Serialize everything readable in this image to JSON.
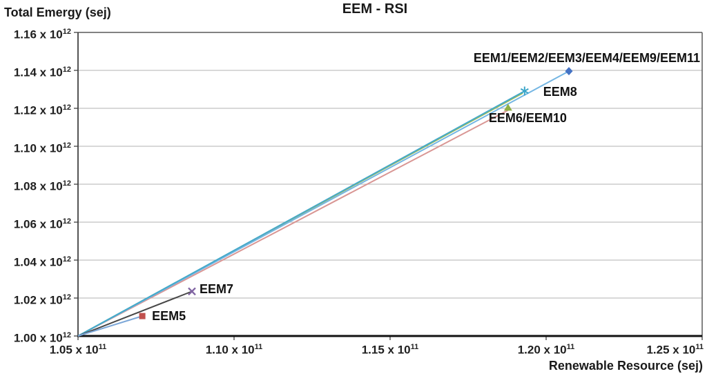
{
  "chart_data": {
    "type": "line",
    "title": "EEM - RSI",
    "legend": "none",
    "grid": "horizontal-only",
    "x_axis": {
      "label": "Renewable Resource (sej)",
      "unit_exponent": "11",
      "min": 1.05,
      "max": 1.25,
      "ticks": [
        {
          "value": 1.05,
          "base": "1.05 x 10",
          "exp": "11"
        },
        {
          "value": 1.1,
          "base": "1.10 x 10",
          "exp": "11"
        },
        {
          "value": 1.15,
          "base": "1.15 x 10",
          "exp": "11"
        },
        {
          "value": 1.2,
          "base": "1.20 x 10",
          "exp": "11"
        },
        {
          "value": 1.25,
          "base": "1.25 x 10",
          "exp": "11"
        }
      ]
    },
    "y_axis": {
      "label": "Total Emergy (sej)",
      "unit_exponent": "12",
      "min": 1.0,
      "max": 1.16,
      "ticks": [
        {
          "value": 1.16,
          "base": "1.16 x 10",
          "exp": "12"
        },
        {
          "value": 1.14,
          "base": "1.14 x 10",
          "exp": "12"
        },
        {
          "value": 1.12,
          "base": "1.12 x 10",
          "exp": "12"
        },
        {
          "value": 1.1,
          "base": "1.10 x 10",
          "exp": "12"
        },
        {
          "value": 1.08,
          "base": "1.08 x 10",
          "exp": "12"
        },
        {
          "value": 1.06,
          "base": "1.06 x 10",
          "exp": "12"
        },
        {
          "value": 1.04,
          "base": "1.04 x 10",
          "exp": "12"
        },
        {
          "value": 1.02,
          "base": "1.02 x 10",
          "exp": "12"
        },
        {
          "value": 1.0,
          "base": "1.00 x 10",
          "exp": "12"
        }
      ]
    },
    "common_origin": {
      "x": 1.05,
      "y": 1.0
    },
    "series": [
      {
        "name": "EEM6/EEM10-second-line",
        "label": "",
        "line_color": "#D99694",
        "marker": "none",
        "marker_color": "",
        "point": {
          "x": 1.1878,
          "y": 1.119
        }
      },
      {
        "name": "EEM6/EEM10",
        "label": "EEM6/EEM10",
        "line_color": "#9BBB59",
        "marker": "triangle",
        "marker_color": "#8FAF44",
        "point": {
          "x": 1.1925,
          "y": 1.128
        },
        "marker_point": {
          "x": 1.1878,
          "y": 1.1204
        },
        "label_anchor": "left",
        "label_dx": -28,
        "label_dy": 6
      },
      {
        "name": "EEM1/EEM2/EEM3/EEM4/EEM9/EEM11",
        "label": "EEM1/EEM2/EEM3/EEM4/EEM9/EEM11",
        "line_color": "#74B6E3",
        "marker": "diamond",
        "marker_color": "#4472C4",
        "point": {
          "x": 1.2073,
          "y": 1.1396
        },
        "label_anchor": "right",
        "label_dx": 190,
        "label_dy": -28
      },
      {
        "name": "EEM8",
        "label": "EEM8",
        "line_color": "#45A9C9",
        "marker": "asterisk",
        "marker_color": "#3BA6C9",
        "point": {
          "x": 1.1931,
          "y": 1.1291
        },
        "label_anchor": "left",
        "label_dx": 27,
        "label_dy": -8
      },
      {
        "name": "EEM7",
        "label": "EEM7",
        "line_color": "#474747",
        "marker": "x",
        "marker_color": "#8064A2",
        "point": {
          "x": 1.0865,
          "y": 1.0235
        },
        "label_anchor": "left",
        "label_dx": 11,
        "label_dy": -12
      },
      {
        "name": "EEM5",
        "label": "EEM5",
        "line_color": "#7CA7D8",
        "marker": "square",
        "marker_color": "#C0504D",
        "point": {
          "x": 1.0706,
          "y": 1.0105
        },
        "label_anchor": "left",
        "label_dx": 14,
        "label_dy": -9
      }
    ],
    "colors": {
      "gridline": "#C0C0C0",
      "plot_border": "#595959",
      "bottom_axis": "#111111",
      "text": "#1a1a1a",
      "background": "#ffffff"
    }
  }
}
